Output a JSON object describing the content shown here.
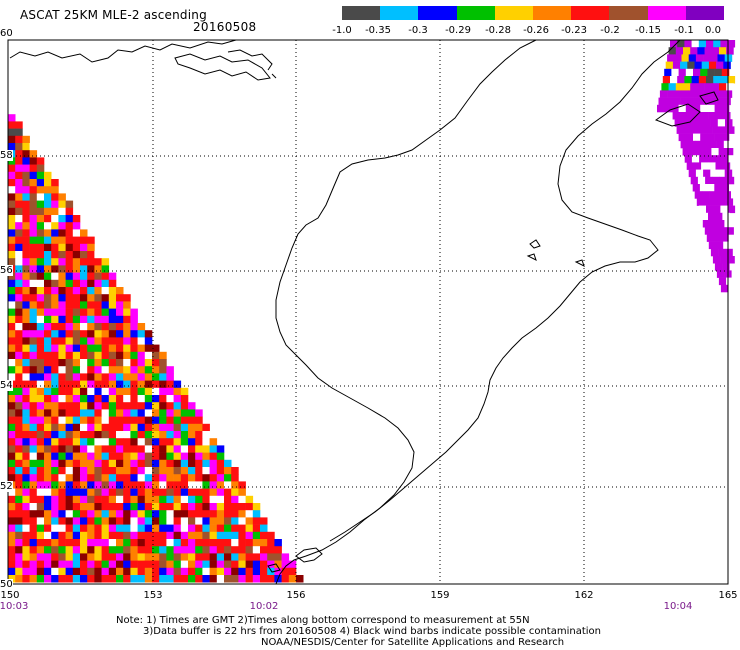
{
  "header": {
    "title": "ASCAT 25KM MLE-2 ascending",
    "date": "20160508"
  },
  "colorbar": {
    "colors": [
      "#4a4a4a",
      "#00bfff",
      "#0000ff",
      "#00c000",
      "#ffd000",
      "#ff8000",
      "#ff1010",
      "#a0522d",
      "#ff00ff",
      "#8000c0"
    ],
    "labels": [
      "-1.0",
      "-0.35",
      "-0.3",
      "-0.29",
      "-0.28",
      "-0.26",
      "-0.23",
      "-0.2",
      "-0.15",
      "-0.1",
      "0.0"
    ]
  },
  "axes": {
    "x_ticks": [
      "150",
      "153",
      "156",
      "159",
      "162",
      "165"
    ],
    "y_ticks": [
      "60",
      "58",
      "56",
      "54",
      "52",
      "50"
    ],
    "time_labels": [
      "10:03",
      "10:02",
      "10:04"
    ]
  },
  "notes": [
    "Note: 1) Times are GMT 2)Times along bottom correspond to measurement at 55N",
    "3)Data buffer is 22 hrs from 20160508 4) Black wind barbs indicate possible contamination",
    "NOAA/NESDIS/Center for Satellite Applications and Research"
  ]
}
